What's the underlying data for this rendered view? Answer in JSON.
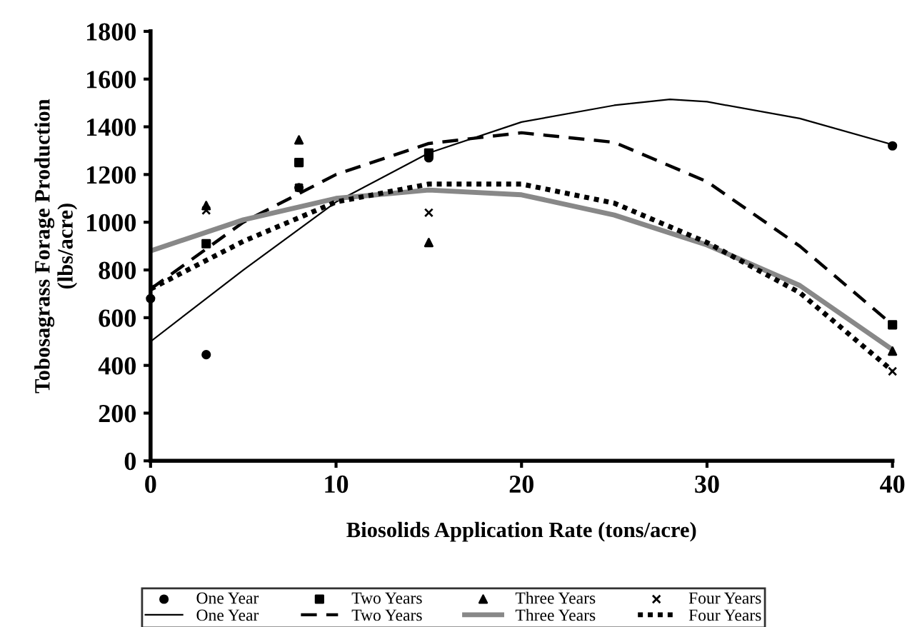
{
  "chart_data": {
    "type": "scatter",
    "xlabel": "Biosolids Application Rate (tons/acre)",
    "ylabel": "Tobosagrass Forage Production\n(lbs/acre)",
    "xlim": [
      0,
      40
    ],
    "xticks": [
      0,
      10,
      20,
      30,
      40
    ],
    "ylim": [
      0,
      1800
    ],
    "yticks": [
      0,
      200,
      400,
      600,
      800,
      1000,
      1200,
      1400,
      1600,
      1800
    ],
    "grid": false,
    "legend": "bottom",
    "series": [
      {
        "name": "One Year",
        "marker": "circle",
        "color": "#000000",
        "x": [
          0,
          3,
          8,
          15,
          40
        ],
        "values": [
          680,
          445,
          1145,
          1270,
          1320
        ]
      },
      {
        "name": "One Year",
        "type": "line",
        "line_style": "solid",
        "color": "#000000",
        "x": [
          0,
          5,
          10,
          15,
          20,
          25,
          28,
          30,
          35,
          40
        ],
        "values": [
          500,
          800,
          1085,
          1290,
          1420,
          1490,
          1515,
          1505,
          1435,
          1325
        ]
      },
      {
        "name": "Two Years",
        "marker": "square",
        "color": "#000000",
        "x": [
          3,
          8,
          15,
          40
        ],
        "values": [
          910,
          1250,
          1290,
          570
        ]
      },
      {
        "name": "Two Years",
        "type": "line",
        "line_style": "dashed",
        "color": "#000000",
        "x": [
          0,
          5,
          10,
          15,
          20,
          25,
          30,
          35,
          40
        ],
        "values": [
          720,
          1000,
          1200,
          1330,
          1375,
          1335,
          1170,
          900,
          570
        ]
      },
      {
        "name": "Three Years",
        "marker": "triangle",
        "color": "#000000",
        "x": [
          3,
          8,
          15,
          40
        ],
        "values": [
          1070,
          1345,
          915,
          460
        ]
      },
      {
        "name": "Three Years",
        "type": "line",
        "line_style": "solid",
        "color": "#888888",
        "x": [
          0,
          5,
          10,
          15,
          20,
          25,
          30,
          35,
          40
        ],
        "values": [
          880,
          1010,
          1100,
          1135,
          1115,
          1030,
          905,
          735,
          466
        ]
      },
      {
        "name": "Four Years",
        "marker": "cross",
        "color": "#000000",
        "x": [
          3,
          8,
          15,
          40
        ],
        "values": [
          1050,
          1145,
          1040,
          375
        ]
      },
      {
        "name": "Four Years",
        "type": "line",
        "line_style": "dotted",
        "color": "#000000",
        "x": [
          0,
          5,
          10,
          15,
          20,
          25,
          30,
          35,
          40
        ],
        "values": [
          720,
          920,
          1085,
          1160,
          1160,
          1080,
          915,
          705,
          377
        ]
      }
    ]
  }
}
